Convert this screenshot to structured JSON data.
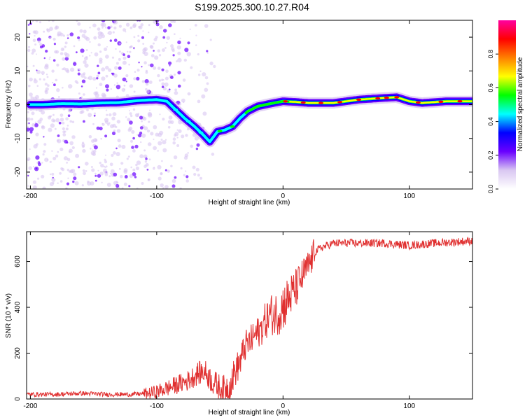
{
  "page": {
    "title": "S199.2025.300.10.27.R04"
  },
  "chart_data": [
    {
      "type": "heatmap",
      "name": "spectrogram",
      "xlabel": "Height of straight line (km)",
      "ylabel": "Frequency (Hz)",
      "xlim": [
        -203,
        150
      ],
      "ylim": [
        -25,
        25
      ],
      "xticks": [
        -200,
        -100,
        0,
        100
      ],
      "xtick_labels": [
        "-200",
        "-100",
        "0",
        "100"
      ],
      "yticks": [
        -20,
        -10,
        0,
        10,
        20
      ],
      "ytick_labels": [
        "-20",
        "-10",
        "0",
        "10",
        "20"
      ],
      "colorbar": {
        "label": "Normalized spectral amplitude",
        "range": [
          0,
          1
        ],
        "ticks": [
          0.0,
          0.2,
          0.4,
          0.6,
          0.8
        ],
        "tick_labels": [
          "0.0",
          "0.2",
          "0.4",
          "0.6",
          "0.8"
        ],
        "colors": [
          "#ffffff",
          "#d9c7f2",
          "#6a00ff",
          "#0000ff",
          "#00ffff",
          "#00ff00",
          "#ffff00",
          "#ff8000",
          "#ff0000",
          "#ff00a0"
        ]
      },
      "ridge": {
        "x": [
          -203,
          -190,
          -175,
          -160,
          -145,
          -130,
          -115,
          -100,
          -92,
          -85,
          -78,
          -70,
          -63,
          -58,
          -52,
          -46,
          -40,
          -34,
          -28,
          -20,
          -10,
          0,
          10,
          20,
          40,
          60,
          80,
          90,
          100,
          110,
          130,
          150
        ],
        "frequency": [
          0,
          0,
          0.3,
          0.2,
          0.5,
          0.6,
          1.2,
          1.5,
          1.0,
          -1.5,
          -4.0,
          -6.5,
          -9.0,
          -11.0,
          -8.0,
          -7.5,
          -6.5,
          -4.0,
          -2.0,
          -0.5,
          0.3,
          1.0,
          0.8,
          0.5,
          0.5,
          1.5,
          2.0,
          2.2,
          1.0,
          0.5,
          1.0,
          1.0
        ]
      },
      "series_note": "noisy purple scatter for x < -60; continuous strong band for x > -30"
    },
    {
      "type": "line",
      "name": "snr",
      "xlabel": "Height of straight line (km)",
      "ylabel": "SNR (10 * v/v)",
      "xlim": [
        -203,
        150
      ],
      "ylim": [
        0,
        730
      ],
      "xticks": [
        -200,
        -100,
        0,
        100
      ],
      "xtick_labels": [
        "-200",
        "-100",
        "0",
        "100"
      ],
      "yticks": [
        0,
        200,
        400,
        600
      ],
      "ytick_labels": [
        "0",
        "200",
        "400",
        "600"
      ],
      "line_color": "#e03030",
      "series": [
        {
          "name": "SNR",
          "x": [
            -203,
            -180,
            -160,
            -140,
            -120,
            -105,
            -95,
            -85,
            -75,
            -68,
            -62,
            -55,
            -48,
            -42,
            -38,
            -34,
            -30,
            -26,
            -22,
            -18,
            -14,
            -10,
            -6,
            -2,
            2,
            6,
            10,
            14,
            18,
            22,
            25,
            30,
            40,
            60,
            80,
            100,
            120,
            150
          ],
          "y": [
            20,
            20,
            25,
            20,
            20,
            25,
            40,
            60,
            80,
            110,
            120,
            70,
            40,
            60,
            120,
            160,
            230,
            250,
            280,
            300,
            340,
            370,
            370,
            390,
            420,
            450,
            480,
            520,
            560,
            600,
            640,
            660,
            680,
            680,
            680,
            670,
            680,
            690
          ]
        }
      ]
    }
  ]
}
